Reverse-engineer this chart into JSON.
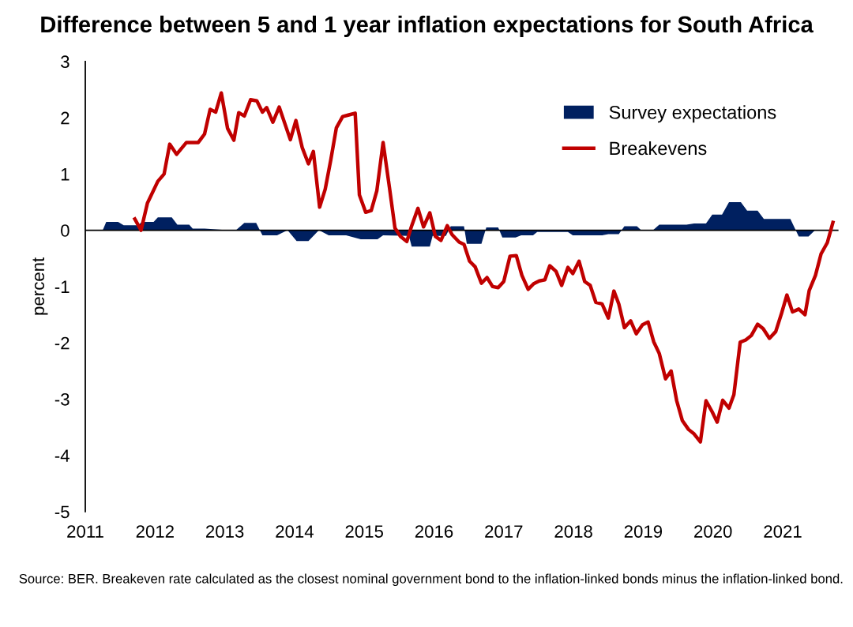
{
  "chart_data": {
    "type": "line",
    "title": "Difference between 5 and 1 year inflation expectations for South Africa",
    "ylabel": "percent",
    "annotations": [
      "Source: BER. Breakeven rate calculated as the closest nominal government bond to the inflation-linked bonds minus the inflation-linked bond."
    ],
    "xlim": [
      2011,
      2021.8
    ],
    "xticks": [
      2011,
      2012,
      2013,
      2014,
      2015,
      2016,
      2017,
      2018,
      2019,
      2020,
      2021
    ],
    "ylim": [
      -5,
      3
    ],
    "yticks": [
      -5,
      -4,
      -3,
      -2,
      -1,
      0,
      1,
      2,
      3
    ],
    "grid": false,
    "legend": "top right",
    "tick_labels": "xy",
    "ref_lines": [
      {
        "axis": "y",
        "value": 0,
        "color": "#000000"
      }
    ],
    "series": [
      {
        "name": "Survey expectations",
        "type": "area",
        "color": "#002060",
        "x": [
          2011.25,
          2011.3,
          2011.47,
          2011.55,
          2011.76,
          2011.81,
          2011.98,
          2012.04,
          2012.24,
          2012.32,
          2012.49,
          2012.54,
          2012.71,
          2012.96,
          2013.16,
          2013.28,
          2013.45,
          2013.54,
          2013.75,
          2013.9,
          2014.03,
          2014.2,
          2014.35,
          2014.49,
          2014.74,
          2014.95,
          2015.19,
          2015.27,
          2015.64,
          2015.68,
          2015.94,
          2015.98,
          2016.17,
          2016.24,
          2016.43,
          2016.47,
          2016.68,
          2016.75,
          2016.92,
          2016.98,
          2017.17,
          2017.25,
          2017.42,
          2017.48,
          2017.92,
          2017.99,
          2018.41,
          2018.5,
          2018.65,
          2018.73,
          2018.91,
          2018.97,
          2019.14,
          2019.23,
          2019.62,
          2019.73,
          2019.9,
          2019.99,
          2020.13,
          2020.23,
          2020.4,
          2020.49,
          2020.64,
          2020.73,
          2021.11,
          2021.23,
          2021.37,
          2021.47,
          2021.73
        ],
        "values": [
          0,
          0.15,
          0.15,
          0.09,
          0.09,
          0.15,
          0.15,
          0.23,
          0.23,
          0.1,
          0.1,
          0.03,
          0.03,
          0.01,
          0,
          0.13,
          0.13,
          -0.09,
          -0.09,
          0,
          -0.19,
          -0.19,
          0,
          -0.09,
          -0.09,
          -0.16,
          -0.16,
          -0.09,
          -0.1,
          -0.29,
          -0.29,
          -0.1,
          -0.1,
          0.07,
          0.07,
          -0.24,
          -0.24,
          0.05,
          0.05,
          -0.13,
          -0.13,
          -0.09,
          -0.09,
          -0.03,
          -0.03,
          -0.09,
          -0.09,
          -0.07,
          -0.07,
          0.07,
          0.07,
          0,
          0,
          0.1,
          0.1,
          0.12,
          0.12,
          0.28,
          0.28,
          0.5,
          0.5,
          0.35,
          0.35,
          0.2,
          0.2,
          -0.11,
          -0.11,
          0.01,
          0.01
        ]
      },
      {
        "name": "Breakevens",
        "color": "#c00000",
        "line_style": "solid",
        "x": [
          2011.71,
          2011.8,
          2011.89,
          2012.04,
          2012.13,
          2012.21,
          2012.31,
          2012.45,
          2012.62,
          2012.71,
          2012.79,
          2012.87,
          2012.95,
          2013.04,
          2013.13,
          2013.2,
          2013.28,
          2013.37,
          2013.46,
          2013.54,
          2013.6,
          2013.69,
          2013.78,
          2013.94,
          2014.02,
          2014.11,
          2014.2,
          2014.27,
          2014.36,
          2014.44,
          2014.52,
          2014.6,
          2014.69,
          2014.78,
          2014.87,
          2014.93,
          2015.02,
          2015.1,
          2015.18,
          2015.27,
          2015.36,
          2015.44,
          2015.52,
          2015.61,
          2015.68,
          2015.77,
          2015.85,
          2015.94,
          2016.02,
          2016.1,
          2016.19,
          2016.26,
          2016.36,
          2016.43,
          2016.51,
          2016.59,
          2016.68,
          2016.76,
          2016.84,
          2016.92,
          2017.0,
          2017.09,
          2017.18,
          2017.26,
          2017.35,
          2017.43,
          2017.51,
          2017.59,
          2017.66,
          2017.75,
          2017.83,
          2017.92,
          2017.99,
          2018.08,
          2018.16,
          2018.24,
          2018.32,
          2018.41,
          2018.5,
          2018.58,
          2018.65,
          2018.73,
          2018.82,
          2018.9,
          2018.99,
          2019.07,
          2019.15,
          2019.23,
          2019.32,
          2019.4,
          2019.48,
          2019.56,
          2019.65,
          2019.73,
          2019.82,
          2019.9,
          2019.99,
          2020.06,
          2020.14,
          2020.23,
          2020.3,
          2020.39,
          2020.47,
          2020.55,
          2020.64,
          2020.72,
          2020.81,
          2020.9,
          2020.98,
          2021.06,
          2021.14,
          2021.23,
          2021.32,
          2021.38,
          2021.47,
          2021.55,
          2021.64,
          2021.72
        ],
        "values": [
          0.2,
          0,
          0.48,
          0.87,
          1.0,
          1.53,
          1.35,
          1.56,
          1.56,
          1.71,
          2.15,
          2.1,
          2.44,
          1.81,
          1.6,
          2.09,
          2.03,
          2.32,
          2.3,
          2.1,
          2.18,
          1.92,
          2.19,
          1.61,
          1.95,
          1.47,
          1.18,
          1.4,
          0.41,
          0.73,
          1.25,
          1.82,
          2.02,
          2.05,
          2.08,
          0.63,
          0.32,
          0.35,
          0.7,
          1.56,
          0.77,
          0.04,
          -0.11,
          -0.2,
          0.08,
          0.39,
          0.06,
          0.31,
          -0.11,
          -0.18,
          0.08,
          -0.08,
          -0.21,
          -0.25,
          -0.55,
          -0.65,
          -0.94,
          -0.84,
          -1.0,
          -1.02,
          -0.91,
          -0.46,
          -0.45,
          -0.8,
          -1.05,
          -0.95,
          -0.9,
          -0.88,
          -0.63,
          -0.73,
          -0.98,
          -0.66,
          -0.77,
          -0.55,
          -0.91,
          -0.98,
          -1.28,
          -1.31,
          -1.56,
          -1.08,
          -1.31,
          -1.73,
          -1.61,
          -1.84,
          -1.68,
          -1.63,
          -1.98,
          -2.19,
          -2.64,
          -2.5,
          -3.03,
          -3.38,
          -3.54,
          -3.62,
          -3.76,
          -3.03,
          -3.23,
          -3.41,
          -3.02,
          -3.16,
          -2.92,
          -1.99,
          -1.95,
          -1.87,
          -1.67,
          -1.75,
          -1.92,
          -1.8,
          -1.49,
          -1.15,
          -1.45,
          -1.4,
          -1.5,
          -1.07,
          -0.8,
          -0.42,
          -0.22,
          0.14
        ]
      }
    ]
  }
}
